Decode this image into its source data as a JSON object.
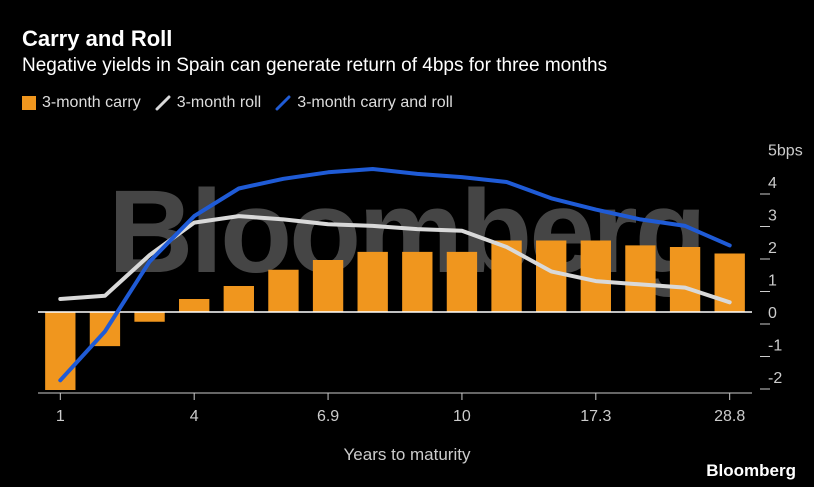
{
  "title": "Carry and Roll",
  "subtitle": "Negative yields in Spain can generate return of 4bps for three months",
  "legend": [
    {
      "label": "3-month carry",
      "color": "#f0961e",
      "kind": "bar"
    },
    {
      "label": "3-month roll",
      "color": "#d9d9d9",
      "kind": "line"
    },
    {
      "label": "3-month carry and roll",
      "color": "#1f5bd6",
      "kind": "line"
    }
  ],
  "xlabel": "Years to maturity",
  "brand": "Bloomberg",
  "watermark": "Bloomberg",
  "chart_data": {
    "type": "bar",
    "x_tick_labels": [
      "1",
      "4",
      "6.9",
      "10",
      "17.3",
      "28.8"
    ],
    "x_tick_index": [
      0,
      3,
      6,
      9,
      12,
      15
    ],
    "ylim": [
      -2.5,
      5
    ],
    "y_ticks": [
      -2,
      -1,
      0,
      1,
      2,
      3,
      4
    ],
    "y_tick_labels": [
      "-2",
      "-1",
      "0",
      "1",
      "2",
      "3",
      "4"
    ],
    "y_top_label": "5bps",
    "grid": false,
    "legend_position": "top-left",
    "series": [
      {
        "name": "3-month carry",
        "kind": "bar",
        "color": "#f0961e",
        "values": [
          -2.4,
          -1.05,
          -0.3,
          0.4,
          0.8,
          1.3,
          1.6,
          1.85,
          1.85,
          1.85,
          2.2,
          2.2,
          2.2,
          2.05,
          2.0,
          1.8
        ]
      },
      {
        "name": "3-month roll",
        "kind": "line",
        "color": "#d9d9d9",
        "values": [
          0.4,
          0.5,
          1.75,
          2.75,
          2.95,
          2.85,
          2.7,
          2.65,
          2.55,
          2.5,
          2.0,
          1.25,
          0.95,
          0.85,
          0.75,
          0.3
        ]
      },
      {
        "name": "3-month carry and roll",
        "kind": "line",
        "color": "#1f5bd6",
        "values": [
          -2.1,
          -0.6,
          1.55,
          2.95,
          3.8,
          4.1,
          4.3,
          4.4,
          4.25,
          4.15,
          4.0,
          3.5,
          3.15,
          2.85,
          2.65,
          2.05
        ]
      }
    ]
  }
}
